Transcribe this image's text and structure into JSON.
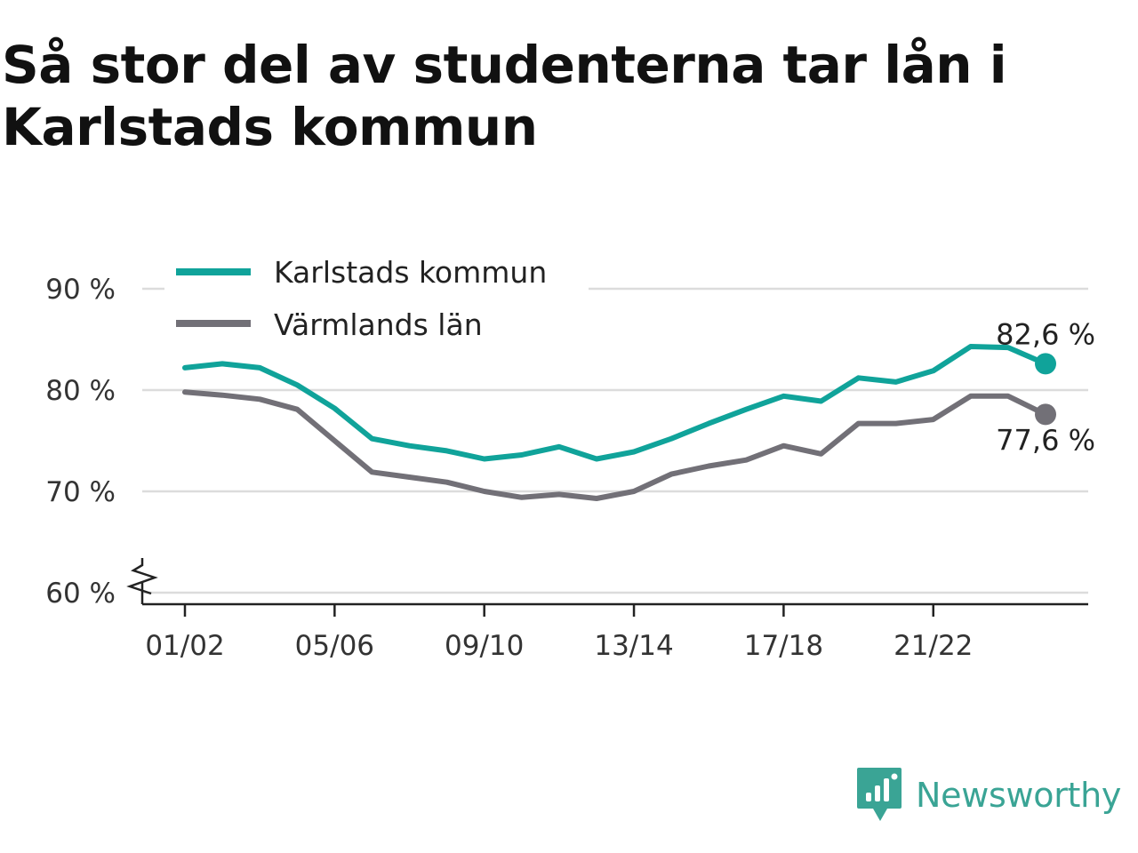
{
  "chart_data": {
    "type": "line",
    "title": "Så stor del av studenterna tar lån i Karlstads kommun",
    "xlabel": "",
    "ylabel": "",
    "ylim": [
      60,
      90
    ],
    "y_ticks": [
      "60 %",
      "70 %",
      "80 %",
      "90 %"
    ],
    "y_tick_values": [
      60,
      70,
      80,
      90
    ],
    "axis_break": true,
    "grid": true,
    "legend_position": "top-left",
    "x": [
      "01/02",
      "02/03",
      "03/04",
      "04/05",
      "05/06",
      "06/07",
      "07/08",
      "08/09",
      "09/10",
      "10/11",
      "11/12",
      "12/13",
      "13/14",
      "14/15",
      "15/16",
      "16/17",
      "17/18",
      "18/19",
      "19/20",
      "20/21",
      "21/22",
      "22/23",
      "23/24",
      "24/25"
    ],
    "x_tick_labels": [
      "01/02",
      "05/06",
      "09/10",
      "13/14",
      "17/18",
      "21/22"
    ],
    "series": [
      {
        "name": "Karlstads kommun",
        "color": "#10a39a",
        "values": [
          82.2,
          82.6,
          82.2,
          80.5,
          78.2,
          75.2,
          74.5,
          74.0,
          73.2,
          73.6,
          74.4,
          73.2,
          73.9,
          75.2,
          76.7,
          78.1,
          79.4,
          78.9,
          81.2,
          80.8,
          81.9,
          84.3,
          84.2,
          82.6
        ],
        "end_label": "82,6 %"
      },
      {
        "name": "Värmlands län",
        "color": "#727077",
        "values": [
          79.8,
          79.5,
          79.1,
          78.1,
          75.0,
          71.9,
          71.4,
          70.9,
          70.0,
          69.4,
          69.7,
          69.3,
          70.0,
          71.7,
          72.5,
          73.1,
          74.5,
          73.7,
          76.7,
          76.7,
          77.1,
          79.4,
          79.4,
          77.6
        ],
        "end_label": "77,6 %"
      }
    ]
  },
  "brand": {
    "name": "Newsworthy",
    "icon": "newsworthy-logo-icon",
    "color": "#3aa495"
  }
}
